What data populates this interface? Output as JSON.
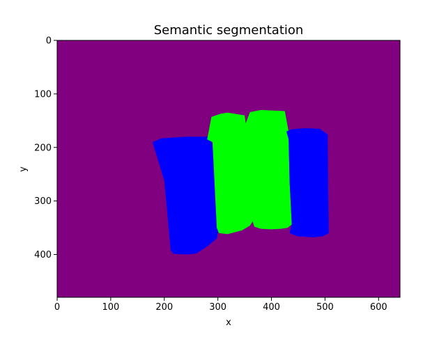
{
  "chart_data": {
    "type": "heatmap",
    "title": "Semantic segmentation",
    "xlabel": "x",
    "ylabel": "y",
    "xlim": [
      0,
      640
    ],
    "ylim": [
      480,
      0
    ],
    "y_inverted": true,
    "xticks": [
      0,
      100,
      200,
      300,
      400,
      500,
      600
    ],
    "yticks": [
      0,
      100,
      200,
      300,
      400
    ],
    "grid": false,
    "background_color": "#800080",
    "regions": [
      {
        "color": "#0000ff",
        "polygon": [
          [
            178,
            190
          ],
          [
            195,
            183
          ],
          [
            240,
            180
          ],
          [
            284,
            180
          ],
          [
            290,
            195
          ],
          [
            302,
            350
          ],
          [
            298,
            370
          ],
          [
            280,
            385
          ],
          [
            260,
            398
          ],
          [
            244,
            400
          ],
          [
            218,
            399
          ],
          [
            212,
            393
          ],
          [
            200,
            262
          ]
        ]
      },
      {
        "color": "#00ff00",
        "polygon": [
          [
            280,
            185
          ],
          [
            282,
            175
          ],
          [
            288,
            143
          ],
          [
            305,
            137
          ],
          [
            318,
            135
          ],
          [
            350,
            140
          ],
          [
            352,
            155
          ],
          [
            360,
            134
          ],
          [
            380,
            130
          ],
          [
            425,
            132
          ],
          [
            432,
            170
          ],
          [
            434,
            265
          ],
          [
            438,
            344
          ],
          [
            430,
            350
          ],
          [
            418,
            352
          ],
          [
            400,
            353
          ],
          [
            380,
            352
          ],
          [
            368,
            348
          ],
          [
            365,
            338
          ],
          [
            360,
            346
          ],
          [
            345,
            355
          ],
          [
            318,
            362
          ],
          [
            302,
            360
          ],
          [
            298,
            350
          ],
          [
            290,
            190
          ]
        ]
      },
      {
        "color": "#0000ff",
        "polygon": [
          [
            428,
            170
          ],
          [
            438,
            166
          ],
          [
            462,
            164
          ],
          [
            490,
            165
          ],
          [
            497,
            170
          ],
          [
            505,
            176
          ],
          [
            507,
            360
          ],
          [
            496,
            366
          ],
          [
            478,
            368
          ],
          [
            448,
            366
          ],
          [
            434,
            360
          ],
          [
            438,
            343
          ],
          [
            434,
            265
          ],
          [
            432,
            185
          ]
        ]
      }
    ]
  }
}
